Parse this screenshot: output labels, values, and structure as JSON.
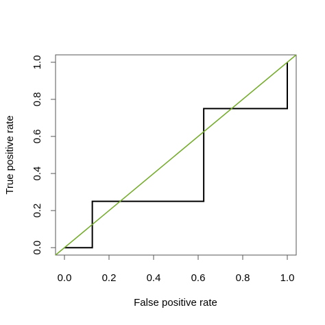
{
  "chart_data": {
    "type": "line",
    "title": "",
    "xlabel": "False positive rate",
    "ylabel": "True positive rate",
    "xlim": [
      -0.04,
      1.04
    ],
    "ylim": [
      -0.04,
      1.04
    ],
    "x_ticks": [
      "0.0",
      "0.2",
      "0.4",
      "0.6",
      "0.8",
      "1.0"
    ],
    "y_ticks": [
      "0.0",
      "0.2",
      "0.4",
      "0.6",
      "0.8",
      "1.0"
    ],
    "grid": false,
    "series": [
      {
        "style": "step",
        "color": "#000000",
        "x": [
          0.0,
          0.125,
          0.125,
          0.625,
          0.625,
          1.0,
          1.0
        ],
        "y": [
          0.0,
          0.0,
          0.25,
          0.25,
          0.75,
          0.75,
          1.0
        ]
      },
      {
        "style": "diagonal reference line",
        "color": "#77ac30",
        "x": [
          -0.04,
          1.04
        ],
        "y": [
          -0.04,
          1.04
        ]
      }
    ]
  }
}
